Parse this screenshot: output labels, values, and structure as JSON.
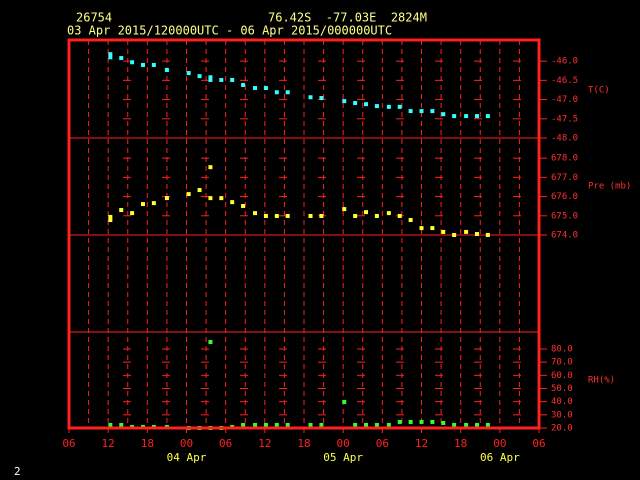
{
  "chart_data": {
    "type": "scatter",
    "station": "26754",
    "location": "76.42S  -77.03E  2824M",
    "period": "03 Apr 2015/120000UTC - 06 Apr 2015/000000UTC",
    "page_number": "2",
    "x": [
      "2015-04-03T12:20Z",
      "2015-04-03T12:20Z",
      "2015-04-03T14:00Z",
      "2015-04-03T15:40Z",
      "2015-04-03T17:20Z",
      "2015-04-03T19:00Z",
      "2015-04-03T21:00Z",
      "2015-04-04T00:20Z",
      "2015-04-04T02:00Z",
      "2015-04-04T03:40Z",
      "2015-04-04T03:40Z",
      "2015-04-04T05:20Z",
      "2015-04-04T07:00Z",
      "2015-04-04T08:40Z",
      "2015-04-04T10:30Z",
      "2015-04-04T12:10Z",
      "2015-04-04T13:50Z",
      "2015-04-04T15:30Z",
      "2015-04-04T19:00Z",
      "2015-04-04T20:40Z",
      "2015-04-05T00:10Z",
      "2015-04-05T01:50Z",
      "2015-04-05T03:30Z",
      "2015-04-05T05:10Z",
      "2015-04-05T07:00Z",
      "2015-04-05T08:40Z",
      "2015-04-05T10:20Z",
      "2015-04-05T12:00Z",
      "2015-04-05T13:40Z",
      "2015-04-05T15:20Z",
      "2015-04-05T17:00Z",
      "2015-04-05T18:50Z",
      "2015-04-05T20:30Z",
      "2015-04-05T22:10Z"
    ],
    "xlim": [
      "2015-04-03T06:00Z",
      "2015-04-06T06:00Z"
    ],
    "xticks": [
      {
        "value": "2015-04-03T06:00Z",
        "label": "06"
      },
      {
        "value": "2015-04-03T12:00Z",
        "label": "12"
      },
      {
        "value": "2015-04-03T18:00Z",
        "label": "18"
      },
      {
        "value": "2015-04-04T00:00Z",
        "label": "00"
      },
      {
        "value": "2015-04-04T06:00Z",
        "label": "06"
      },
      {
        "value": "2015-04-04T12:00Z",
        "label": "12"
      },
      {
        "value": "2015-04-04T18:00Z",
        "label": "18"
      },
      {
        "value": "2015-04-05T00:00Z",
        "label": "00"
      },
      {
        "value": "2015-04-05T06:00Z",
        "label": "06"
      },
      {
        "value": "2015-04-05T12:00Z",
        "label": "12"
      },
      {
        "value": "2015-04-05T18:00Z",
        "label": "18"
      },
      {
        "value": "2015-04-06T00:00Z",
        "label": "00"
      },
      {
        "value": "2015-04-06T06:00Z",
        "label": "06"
      }
    ],
    "date_labels": [
      {
        "value": "2015-04-04T00:00Z",
        "label": "04 Apr"
      },
      {
        "value": "2015-04-05T00:00Z",
        "label": "05 Apr"
      },
      {
        "value": "2015-04-06T00:00Z",
        "label": "06 Apr"
      }
    ],
    "grid_x": [
      "2015-04-03T09:00Z",
      "2015-04-03T12:00Z",
      "2015-04-03T15:00Z",
      "2015-04-03T18:00Z",
      "2015-04-03T21:00Z",
      "2015-04-04T00:00Z",
      "2015-04-04T03:00Z",
      "2015-04-04T06:00Z",
      "2015-04-04T09:00Z",
      "2015-04-04T12:00Z",
      "2015-04-04T15:00Z",
      "2015-04-04T18:00Z",
      "2015-04-04T21:00Z",
      "2015-04-05T00:00Z",
      "2015-04-05T03:00Z",
      "2015-04-05T06:00Z",
      "2015-04-05T09:00Z",
      "2015-04-05T12:00Z",
      "2015-04-05T15:00Z",
      "2015-04-05T18:00Z",
      "2015-04-05T21:00Z",
      "2015-04-06T00:00Z",
      "2015-04-06T03:00Z"
    ],
    "series": [
      {
        "name": "T(C)",
        "color": "#33ffff",
        "ylim": [
          -48,
          -45.45
        ],
        "yticks": [
          {
            "value": -46,
            "label": "-46.0"
          },
          {
            "value": -46.5,
            "label": "-46.5"
          },
          {
            "value": -47,
            "label": "-47.0"
          },
          {
            "value": -47.5,
            "label": "-47.5"
          },
          {
            "value": -48,
            "label": "-48.0"
          }
        ],
        "values": [
          -45.82,
          -45.9,
          -45.92,
          -46.03,
          -46.1,
          -46.1,
          -46.23,
          -46.31,
          -46.39,
          -46.42,
          -46.49,
          -46.49,
          -46.49,
          -46.62,
          -46.7,
          -46.7,
          -46.81,
          -46.81,
          -46.94,
          -46.96,
          -47.04,
          -47.09,
          -47.12,
          -47.17,
          -47.19,
          -47.19,
          -47.3,
          -47.3,
          -47.3,
          -47.38,
          -47.43,
          -47.43,
          -47.43,
          -47.43
        ]
      },
      {
        "name": "Pre (mb)",
        "color": "#ffff33",
        "ylim": [
          674,
          679.05
        ],
        "yticks": [
          {
            "value": 678,
            "label": "678.0"
          },
          {
            "value": 677,
            "label": "677.0"
          },
          {
            "value": 676,
            "label": "676.0"
          },
          {
            "value": 675,
            "label": "675.0"
          },
          {
            "value": 674,
            "label": "674.0"
          }
        ],
        "values": [
          674.94,
          674.78,
          675.3,
          675.14,
          675.61,
          675.66,
          675.92,
          676.13,
          676.34,
          677.53,
          675.92,
          675.92,
          675.71,
          675.51,
          675.14,
          674.99,
          674.99,
          674.99,
          674.99,
          674.99,
          675.35,
          674.99,
          675.19,
          674.99,
          675.14,
          674.99,
          674.78,
          674.36,
          674.36,
          674.16,
          674.0,
          674.16,
          674.05,
          674.0
        ]
      },
      {
        "name": "RH(%)",
        "color": "#33ff33",
        "ylim": [
          20,
          92.9
        ],
        "yticks": [
          {
            "value": 80,
            "label": "80.0"
          },
          {
            "value": 70,
            "label": "70.0"
          },
          {
            "value": 60,
            "label": "60.0"
          },
          {
            "value": 50,
            "label": "50.0"
          },
          {
            "value": 40,
            "label": "40.0"
          },
          {
            "value": 30,
            "label": "30.0"
          },
          {
            "value": 20,
            "label": "20.0"
          }
        ],
        "values": [
          22.3,
          null,
          22.3,
          20.8,
          20.8,
          20.8,
          20.8,
          20,
          20,
          85.3,
          20,
          20,
          20.8,
          22.3,
          22.3,
          22.3,
          22.3,
          22.3,
          22.3,
          22.3,
          39.8,
          22.3,
          22.3,
          22.3,
          22.3,
          24.6,
          24.6,
          24.6,
          24.6,
          23.8,
          22.3,
          22.3,
          22.3,
          22.3
        ]
      }
    ]
  }
}
